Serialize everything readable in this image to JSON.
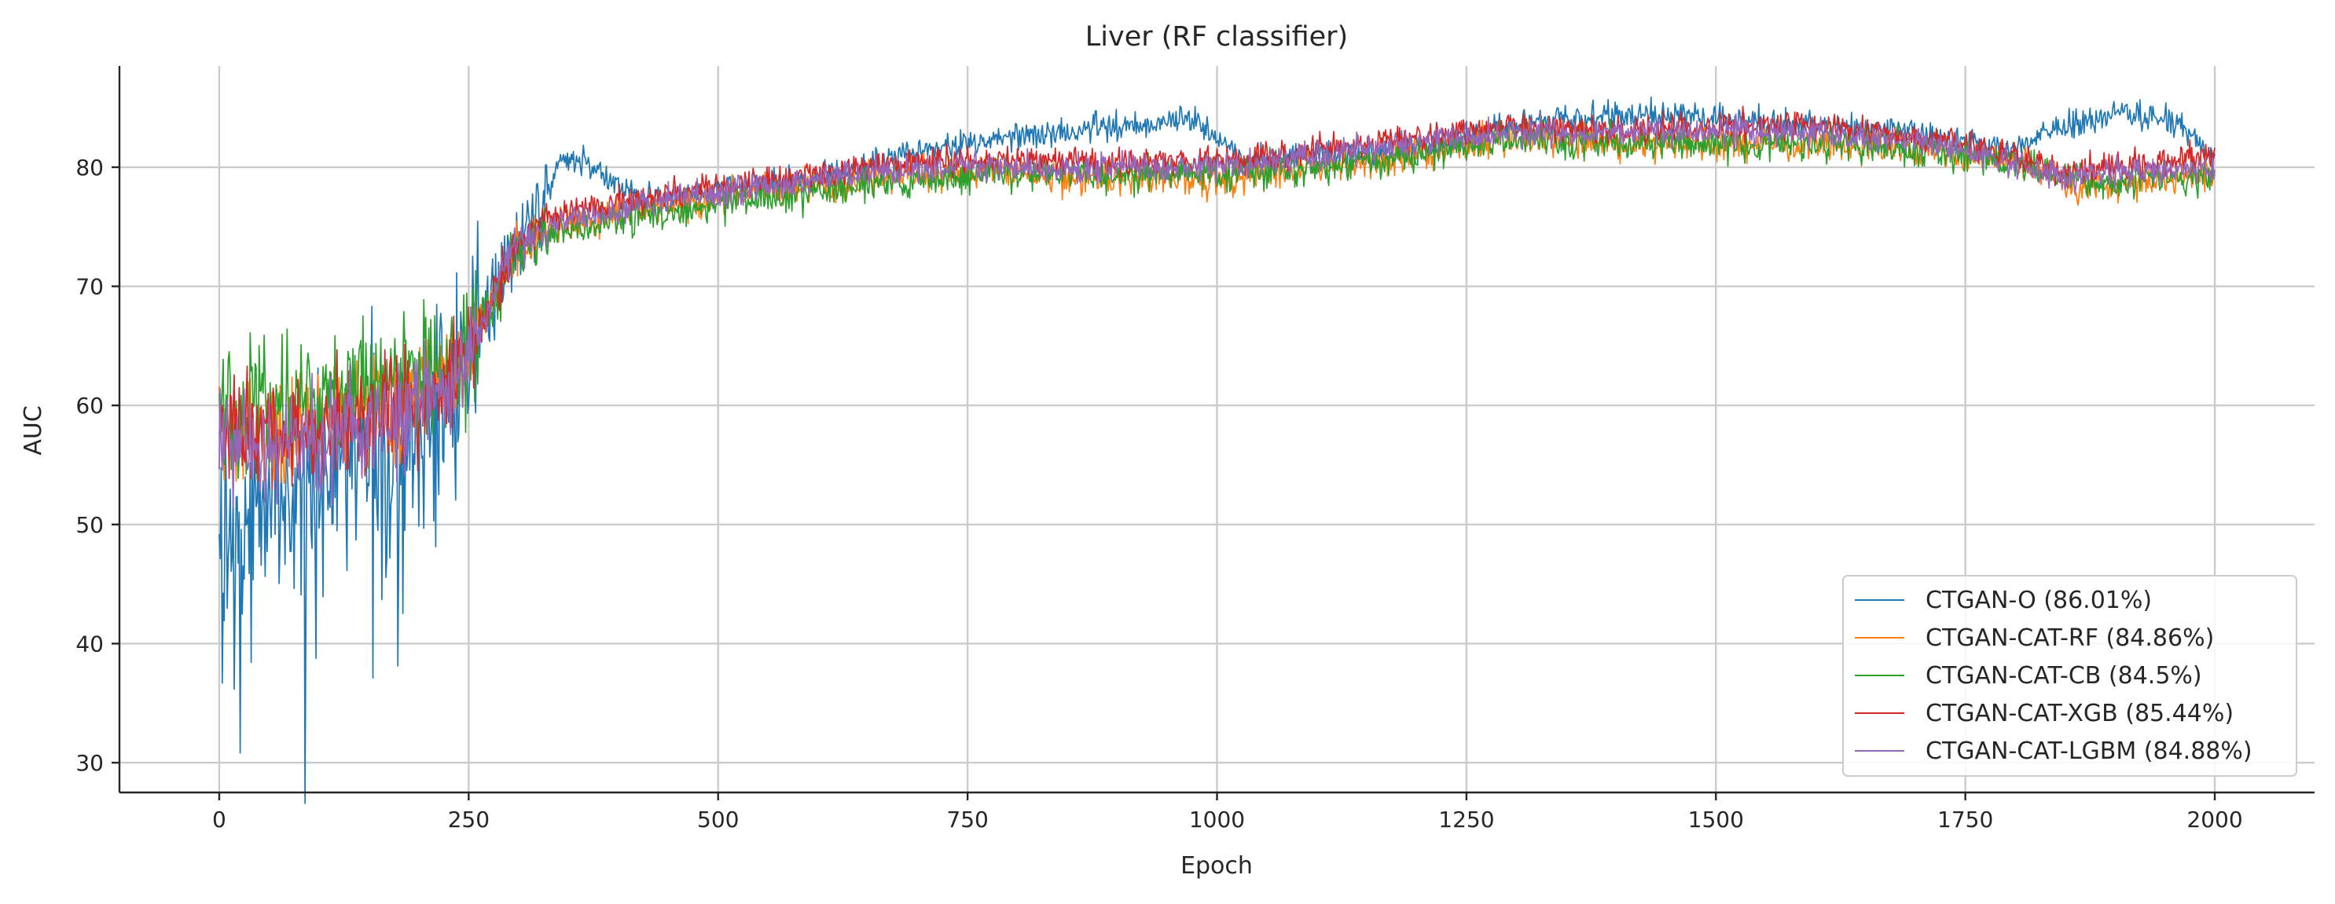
{
  "chart_data": {
    "type": "line",
    "title": "Liver (RF classifier)",
    "xlabel": "Epoch",
    "ylabel": "AUC",
    "xlim": [
      -100,
      2100
    ],
    "ylim": [
      27.5,
      88.5
    ],
    "xticks": [
      0,
      250,
      500,
      750,
      1000,
      1250,
      1500,
      1750,
      2000
    ],
    "yticks": [
      30,
      40,
      50,
      60,
      70,
      80
    ],
    "grid": true,
    "legend_position": "lower-right",
    "series": [
      {
        "name": "CTGAN-O (86.01%)",
        "color": "#1f77b4",
        "anchors": [
          [
            0,
            47
          ],
          [
            20,
            50
          ],
          [
            60,
            52
          ],
          [
            100,
            54
          ],
          [
            150,
            56
          ],
          [
            200,
            58
          ],
          [
            240,
            62
          ],
          [
            270,
            68
          ],
          [
            300,
            74
          ],
          [
            330,
            78
          ],
          [
            345,
            81
          ],
          [
            380,
            80
          ],
          [
            400,
            78
          ],
          [
            450,
            77
          ],
          [
            500,
            78
          ],
          [
            600,
            79
          ],
          [
            700,
            81.5
          ],
          [
            750,
            82
          ],
          [
            800,
            82.5
          ],
          [
            900,
            83.5
          ],
          [
            980,
            84
          ],
          [
            1000,
            82.5
          ],
          [
            1030,
            80.5
          ],
          [
            1100,
            81
          ],
          [
            1200,
            81.5
          ],
          [
            1250,
            82.5
          ],
          [
            1300,
            83.5
          ],
          [
            1400,
            84.5
          ],
          [
            1500,
            84
          ],
          [
            1600,
            83.5
          ],
          [
            1700,
            83
          ],
          [
            1750,
            82
          ],
          [
            1800,
            81.5
          ],
          [
            1830,
            83
          ],
          [
            1900,
            84.5
          ],
          [
            1950,
            84
          ],
          [
            1980,
            82.5
          ],
          [
            2000,
            80.5
          ]
        ],
        "noise_early": 9,
        "noise_late": 1.2
      },
      {
        "name": "CTGAN-CAT-RF (84.86%)",
        "color": "#ff7f0e",
        "anchors": [
          [
            0,
            58
          ],
          [
            100,
            58.5
          ],
          [
            200,
            60
          ],
          [
            240,
            63
          ],
          [
            270,
            68
          ],
          [
            300,
            73
          ],
          [
            330,
            75
          ],
          [
            400,
            76
          ],
          [
            500,
            77.5
          ],
          [
            600,
            78.5
          ],
          [
            700,
            79.5
          ],
          [
            800,
            79.5
          ],
          [
            900,
            79
          ],
          [
            1000,
            79
          ],
          [
            1100,
            80
          ],
          [
            1200,
            81
          ],
          [
            1300,
            82.5
          ],
          [
            1400,
            82
          ],
          [
            1500,
            82
          ],
          [
            1600,
            82
          ],
          [
            1700,
            81.5
          ],
          [
            1800,
            80.5
          ],
          [
            1850,
            78.5
          ],
          [
            1900,
            78.5
          ],
          [
            2000,
            79.5
          ]
        ],
        "noise_early": 4.5,
        "noise_late": 1.4
      },
      {
        "name": "CTGAN-CAT-CB (84.5%)",
        "color": "#2ca02c",
        "anchors": [
          [
            0,
            59
          ],
          [
            100,
            61
          ],
          [
            200,
            62
          ],
          [
            240,
            63
          ],
          [
            270,
            68
          ],
          [
            300,
            73
          ],
          [
            330,
            74.5
          ],
          [
            400,
            75.5
          ],
          [
            500,
            77
          ],
          [
            600,
            78
          ],
          [
            700,
            79
          ],
          [
            800,
            79.5
          ],
          [
            900,
            79.5
          ],
          [
            1000,
            79.5
          ],
          [
            1100,
            80
          ],
          [
            1200,
            81
          ],
          [
            1300,
            82.5
          ],
          [
            1400,
            82
          ],
          [
            1500,
            82
          ],
          [
            1600,
            82
          ],
          [
            1700,
            81.5
          ],
          [
            1800,
            80.5
          ],
          [
            1850,
            79
          ],
          [
            1900,
            79
          ],
          [
            2000,
            79
          ]
        ],
        "noise_early": 5.5,
        "noise_late": 1.5
      },
      {
        "name": "CTGAN-CAT-XGB (85.44%)",
        "color": "#d62728",
        "anchors": [
          [
            0,
            58
          ],
          [
            100,
            58
          ],
          [
            200,
            60
          ],
          [
            240,
            63
          ],
          [
            270,
            68
          ],
          [
            300,
            74
          ],
          [
            330,
            76
          ],
          [
            400,
            77
          ],
          [
            500,
            78.5
          ],
          [
            600,
            79.5
          ],
          [
            700,
            80.5
          ],
          [
            800,
            80.5
          ],
          [
            900,
            80.5
          ],
          [
            1000,
            80.5
          ],
          [
            1100,
            81.5
          ],
          [
            1200,
            82.5
          ],
          [
            1300,
            83.5
          ],
          [
            1400,
            83
          ],
          [
            1500,
            83.5
          ],
          [
            1600,
            83.5
          ],
          [
            1700,
            82.5
          ],
          [
            1800,
            81
          ],
          [
            1850,
            79.5
          ],
          [
            1900,
            80
          ],
          [
            2000,
            81
          ]
        ],
        "noise_early": 4.5,
        "noise_late": 1.2
      },
      {
        "name": "CTGAN-CAT-LGBM (84.88%)",
        "color": "#9467bd",
        "anchors": [
          [
            0,
            57
          ],
          [
            100,
            57
          ],
          [
            200,
            60
          ],
          [
            240,
            63
          ],
          [
            270,
            68
          ],
          [
            300,
            73.5
          ],
          [
            330,
            75
          ],
          [
            400,
            76.5
          ],
          [
            500,
            78
          ],
          [
            600,
            79
          ],
          [
            700,
            80
          ],
          [
            800,
            80
          ],
          [
            900,
            80
          ],
          [
            1000,
            80
          ],
          [
            1100,
            81
          ],
          [
            1200,
            82
          ],
          [
            1300,
            83
          ],
          [
            1400,
            83
          ],
          [
            1500,
            83
          ],
          [
            1600,
            83
          ],
          [
            1700,
            82
          ],
          [
            1800,
            80.5
          ],
          [
            1850,
            79
          ],
          [
            1900,
            79.5
          ],
          [
            2000,
            80
          ]
        ],
        "noise_early": 4.5,
        "noise_late": 1.2
      }
    ]
  }
}
